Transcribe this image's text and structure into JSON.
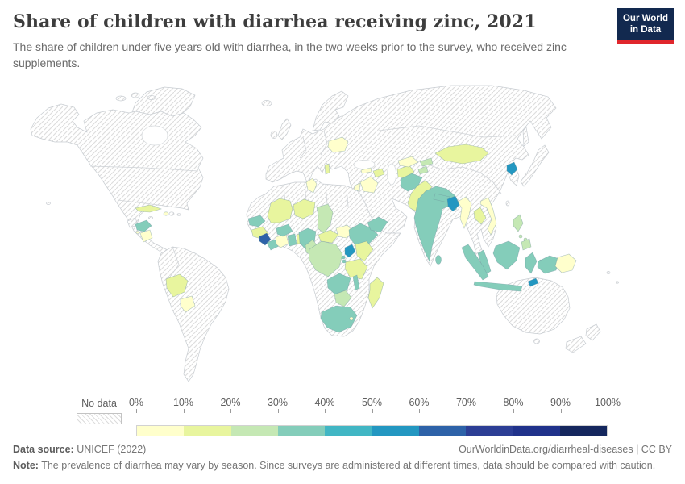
{
  "header": {
    "title": "Share of children with diarrhea receiving zinc, 2021",
    "subtitle": "The share of children under five years old with diarrhea, in the two weeks prior to the survey, who received zinc supplements.",
    "logo": {
      "line1": "Our World",
      "line2": "in Data",
      "bg_color": "#12294f",
      "accent_color": "#e0262c"
    }
  },
  "legend": {
    "no_data_label": "No data",
    "tick_labels": [
      "0%",
      "10%",
      "20%",
      "30%",
      "40%",
      "50%",
      "60%",
      "70%",
      "80%",
      "90%",
      "100%"
    ],
    "bins": [
      {
        "range": "0-10%",
        "color": "#ffffcc"
      },
      {
        "range": "10-20%",
        "color": "#e8f59e"
      },
      {
        "range": "20-30%",
        "color": "#c5e8b4"
      },
      {
        "range": "30-40%",
        "color": "#84cdba"
      },
      {
        "range": "40-50%",
        "color": "#41b6c4"
      },
      {
        "range": "50-60%",
        "color": "#2397c1"
      },
      {
        "range": "60-70%",
        "color": "#2d62a8"
      },
      {
        "range": "70-80%",
        "color": "#2c3e95"
      },
      {
        "range": "80-90%",
        "color": "#20328b"
      },
      {
        "range": "90-100%",
        "color": "#15275e"
      }
    ]
  },
  "footer": {
    "datasource_label": "Data source:",
    "datasource_value": " UNICEF (2022)",
    "link": "OurWorldinData.org/diarrheal-diseases | CC BY",
    "note_label": "Note:",
    "note_value": " The prevalence of diarrhea may vary by season. Since surveys are administered at different times, data should be compared with caution."
  },
  "chart_data": {
    "type": "heatmap",
    "subtype": "choropleth-world-map",
    "title": "Share of children with diarrhea receiving zinc, 2021",
    "year": 2021,
    "unit": "% of children under five with diarrhea receiving zinc",
    "no_data_style": "diagonal-hatch",
    "bins": [
      "0-10%",
      "10-20%",
      "20-30%",
      "30-40%",
      "40-50%",
      "50-60%",
      "60-70%",
      "70-80%",
      "80-90%",
      "90-100%"
    ],
    "countries": [
      {
        "name": "Honduras",
        "band": "30-40%"
      },
      {
        "name": "El Salvador",
        "band": "0-10%"
      },
      {
        "name": "Nicaragua",
        "band": "0-10%"
      },
      {
        "name": "Cuba",
        "band": "10-20%"
      },
      {
        "name": "Haiti",
        "band": "0-10%"
      },
      {
        "name": "Bolivia",
        "band": "10-20%"
      },
      {
        "name": "Paraguay",
        "band": "0-10%"
      },
      {
        "name": "Belarus",
        "band": "0-10%"
      },
      {
        "name": "Albania",
        "band": "10-20%"
      },
      {
        "name": "Tunisia",
        "band": "0-10%"
      },
      {
        "name": "Senegal",
        "band": "30-40%"
      },
      {
        "name": "Gambia",
        "band": "30-40%"
      },
      {
        "name": "Guinea",
        "band": "10-20%"
      },
      {
        "name": "Sierra Leone",
        "band": "60-70%"
      },
      {
        "name": "Liberia",
        "band": "30-40%"
      },
      {
        "name": "Côte d'Ivoire",
        "band": "0-10%"
      },
      {
        "name": "Ghana",
        "band": "30-40%"
      },
      {
        "name": "Togo",
        "band": "10-20%"
      },
      {
        "name": "Benin",
        "band": "30-40%"
      },
      {
        "name": "Burkina Faso",
        "band": "30-40%"
      },
      {
        "name": "Mali",
        "band": "10-20%"
      },
      {
        "name": "Niger",
        "band": "10-20%"
      },
      {
        "name": "Nigeria",
        "band": "30-40%"
      },
      {
        "name": "Chad",
        "band": "20-30%"
      },
      {
        "name": "Cameroon",
        "band": "20-30%"
      },
      {
        "name": "Central African Republic",
        "band": "10-20%"
      },
      {
        "name": "South Sudan",
        "band": "0-10%"
      },
      {
        "name": "Ethiopia",
        "band": "30-40%"
      },
      {
        "name": "Uganda",
        "band": "50-60%"
      },
      {
        "name": "Kenya",
        "band": "10-20%"
      },
      {
        "name": "Rwanda",
        "band": "30-40%"
      },
      {
        "name": "Burundi",
        "band": "30-40%"
      },
      {
        "name": "Tanzania",
        "band": "10-20%"
      },
      {
        "name": "Democratic Republic of Congo",
        "band": "20-30%"
      },
      {
        "name": "Zambia",
        "band": "30-40%"
      },
      {
        "name": "Malawi",
        "band": "30-40%"
      },
      {
        "name": "Zimbabwe",
        "band": "20-30%"
      },
      {
        "name": "South Africa",
        "band": "30-40%"
      },
      {
        "name": "Eswatini",
        "band": "0-10%"
      },
      {
        "name": "Madagascar",
        "band": "10-20%"
      },
      {
        "name": "Iraq",
        "band": "0-10%"
      },
      {
        "name": "Jordan",
        "band": "0-10%"
      },
      {
        "name": "Yemen",
        "band": "30-40%"
      },
      {
        "name": "Georgia",
        "band": "0-10%"
      },
      {
        "name": "Azerbaijan",
        "band": "10-20%"
      },
      {
        "name": "Turkmenistan",
        "band": "10-20%"
      },
      {
        "name": "Uzbekistan",
        "band": "0-10%"
      },
      {
        "name": "Tajikistan",
        "band": "20-30%"
      },
      {
        "name": "Kyrgyzstan",
        "band": "20-30%"
      },
      {
        "name": "Afghanistan",
        "band": "30-40%"
      },
      {
        "name": "Pakistan",
        "band": "10-20%"
      },
      {
        "name": "India",
        "band": "30-40%"
      },
      {
        "name": "Nepal",
        "band": "30-40%"
      },
      {
        "name": "Bangladesh",
        "band": "50-60%"
      },
      {
        "name": "Sri Lanka",
        "band": "30-40%"
      },
      {
        "name": "Myanmar",
        "band": "0-10%"
      },
      {
        "name": "Laos",
        "band": "10-20%"
      },
      {
        "name": "Vietnam",
        "band": "0-10%"
      },
      {
        "name": "Mongolia",
        "band": "10-20%"
      },
      {
        "name": "North Korea",
        "band": "50-60%"
      },
      {
        "name": "Philippines",
        "band": "20-30%"
      },
      {
        "name": "Malaysia",
        "band": "30-40%"
      },
      {
        "name": "Indonesia",
        "band": "30-40%"
      },
      {
        "name": "Timor-Leste",
        "band": "50-60%"
      },
      {
        "name": "Papua New Guinea",
        "band": "0-10%"
      }
    ]
  }
}
